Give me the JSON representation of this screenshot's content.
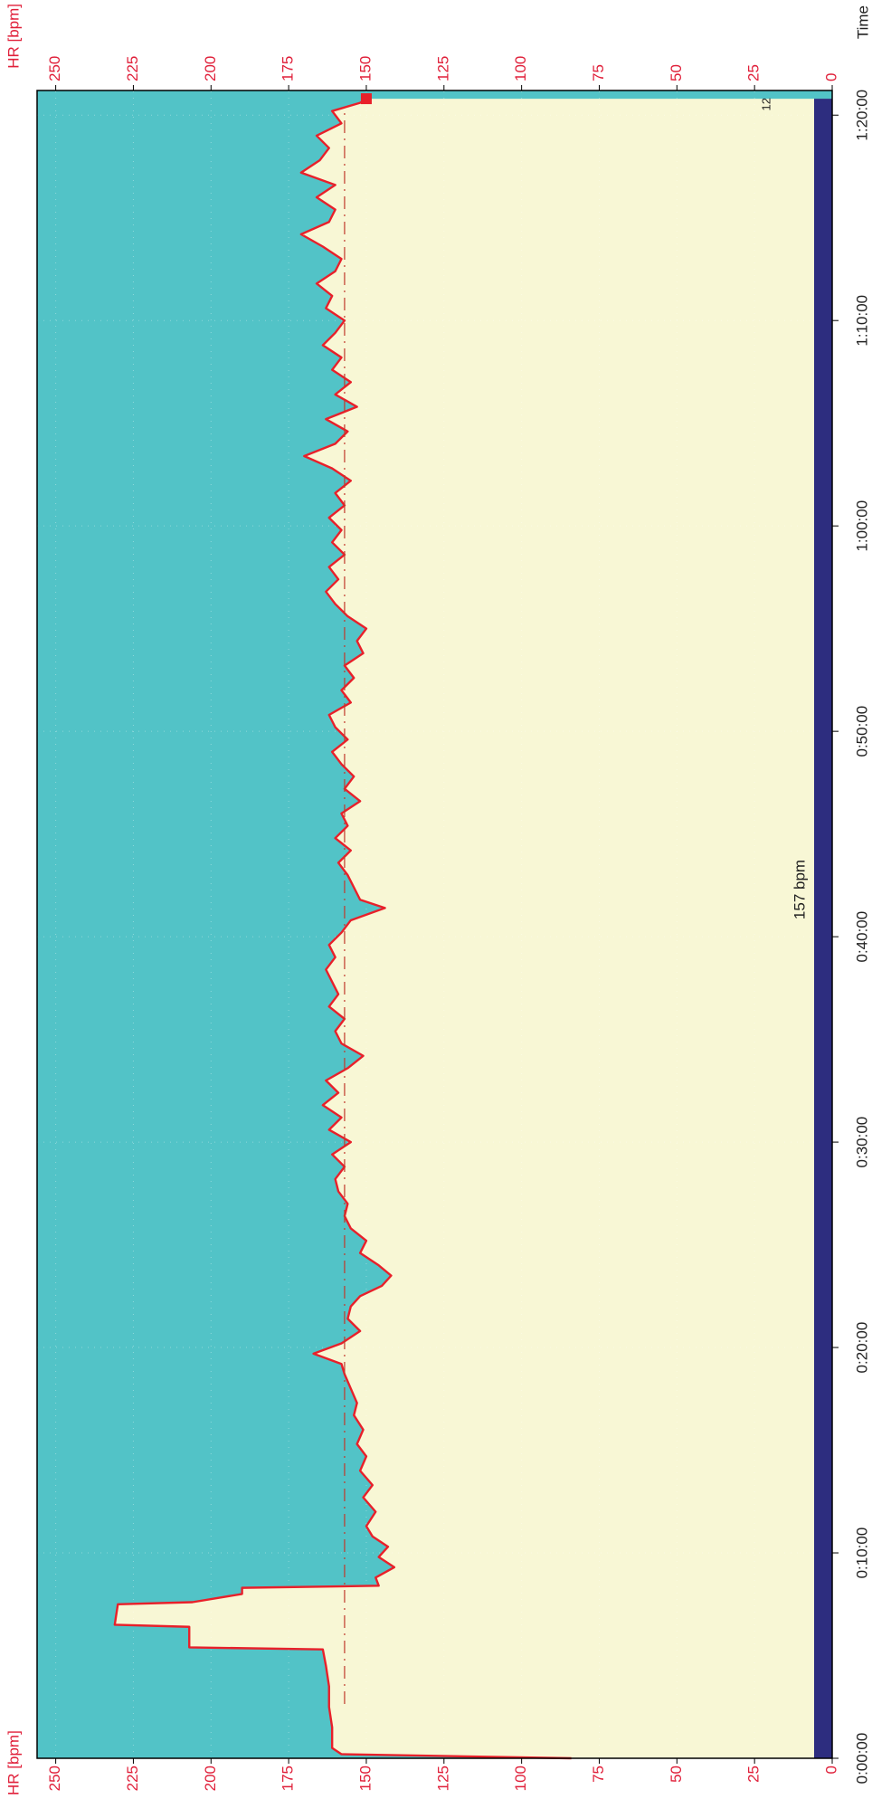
{
  "chart_data": {
    "type": "line",
    "ylabel": "HR [bpm]",
    "xlabel": "Time",
    "x": [
      0,
      0.2,
      0.5,
      1.5,
      2.5,
      3.5,
      4.5,
      5.3,
      5.4,
      6.4,
      6.5,
      7.5,
      7.6,
      8.0,
      8.3,
      8.4,
      8.8,
      9.3,
      9.8,
      10.3,
      10.8,
      11.3,
      12,
      12.7,
      13.3,
      14,
      14.7,
      15.3,
      16,
      16.7,
      17.3,
      18,
      18.7,
      19.2,
      19.7,
      20.2,
      20.8,
      21.4,
      22,
      22.5,
      23,
      23.5,
      24,
      24.6,
      25.2,
      25.8,
      26.4,
      27,
      27.6,
      28.2,
      28.8,
      29.4,
      30,
      30.6,
      31.2,
      31.8,
      32.4,
      33,
      33.6,
      34.2,
      34.8,
      35.4,
      36,
      36.6,
      37.2,
      37.8,
      38.4,
      39,
      39.6,
      40.2,
      40.8,
      41.4,
      41.8,
      42.4,
      43,
      43.6,
      44.2,
      44.8,
      45.4,
      46,
      46.6,
      47.2,
      47.8,
      48.4,
      49,
      49.6,
      50.2,
      50.8,
      51.4,
      52,
      52.6,
      53.2,
      53.8,
      54.4,
      55,
      55.6,
      56.2,
      56.8,
      57.4,
      58,
      58.6,
      59.2,
      59.8,
      60.4,
      61,
      61.6,
      62.2,
      62.8,
      63.4,
      64,
      64.6,
      65.2,
      65.8,
      66.4,
      67,
      67.6,
      68.2,
      68.8,
      69.4,
      70,
      70.6,
      71.2,
      71.8,
      72.4,
      73,
      73.6,
      74.2,
      74.8,
      75.4,
      76,
      76.6,
      77.2,
      77.8,
      78.4,
      79,
      79.6,
      80.2,
      80.6,
      80.8
    ],
    "series": [
      {
        "name": "HR",
        "color": "#e8202a",
        "values": [
          84,
          158,
          161,
          161,
          162,
          162,
          163,
          164,
          207,
          207,
          231,
          230,
          206,
          190,
          190,
          146,
          147,
          141,
          146,
          143,
          148,
          150,
          147,
          151,
          148,
          152,
          150,
          153,
          151,
          154,
          153,
          155,
          157,
          158,
          167,
          158,
          152,
          156,
          155,
          152,
          145,
          142,
          146,
          152,
          150,
          155,
          157,
          156,
          159,
          160,
          157,
          161,
          155,
          162,
          158,
          164,
          159,
          163,
          156,
          151,
          158,
          160,
          157,
          162,
          159,
          161,
          163,
          160,
          162,
          158,
          155,
          144,
          152,
          154,
          156,
          159,
          155,
          160,
          156,
          158,
          152,
          157,
          154,
          158,
          161,
          156,
          160,
          162,
          155,
          158,
          154,
          157,
          151,
          153,
          150,
          156,
          160,
          163,
          159,
          162,
          157,
          161,
          158,
          162,
          157,
          160,
          155,
          161,
          170,
          160,
          156,
          163,
          153,
          160,
          155,
          161,
          158,
          164,
          160,
          157,
          163,
          161,
          166,
          160,
          158,
          164,
          171,
          162,
          160,
          166,
          160,
          171,
          165,
          162,
          166,
          158,
          161,
          152,
          150
        ]
      }
    ],
    "xlim": [
      0,
      81.2
    ],
    "xticks": [
      {
        "value": 0,
        "label": "0:00:00"
      },
      {
        "value": 10,
        "label": "0:10:00"
      },
      {
        "value": 20,
        "label": "0:20:00"
      },
      {
        "value": 30,
        "label": "0:30:00"
      },
      {
        "value": 40,
        "label": "0:40:00"
      },
      {
        "value": 50,
        "label": "0:50:00"
      },
      {
        "value": 60,
        "label": "1:00:00"
      },
      {
        "value": 70,
        "label": "1:10:00"
      },
      {
        "value": 80,
        "label": "1:20:00"
      }
    ],
    "ylim": [
      0,
      256
    ],
    "yticks": [
      0,
      25,
      50,
      75,
      100,
      125,
      150,
      175,
      200,
      225,
      250
    ],
    "mean_line": 157,
    "mean_label": "157 bpm",
    "annotation": "12",
    "grid": true,
    "upper_color": "#52c3c7",
    "lower_color": "#f8f7d5",
    "tick_color": "#e0203a"
  }
}
